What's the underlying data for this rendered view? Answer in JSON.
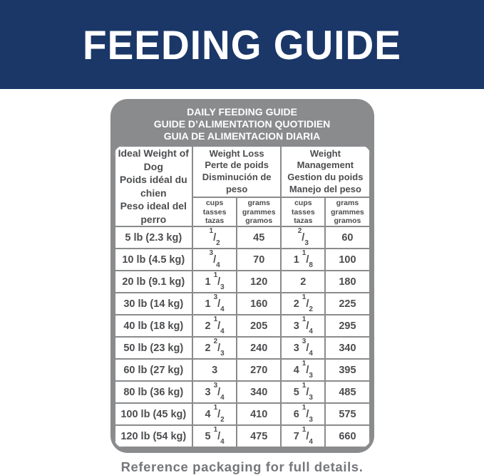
{
  "banner": {
    "title": "FEEDING GUIDE"
  },
  "colors": {
    "banner_bg": "#1b3768",
    "banner_text": "#ffffff",
    "table_gray": "#8a8b8d",
    "cell_text": "#4c4d4f",
    "footer_text": "#76777b",
    "page_bg": "#ffffff"
  },
  "table": {
    "title_lines": [
      "DAILY FEEDING GUIDE",
      "GUIDE D’ALIMENTATION QUOTIDIEN",
      "GUIA DE ALIMENTACION DIARIA"
    ],
    "weight_header_lines": [
      "Ideal Weight of Dog",
      "Poids idéal du chien",
      "Peso ideal del perro"
    ],
    "groups": [
      {
        "lines": [
          "Weight Loss",
          "Perte de poids",
          "Disminución de peso"
        ]
      },
      {
        "lines": [
          "Weight Management",
          "Gestion du poids",
          "Manejo del peso"
        ]
      }
    ],
    "units": {
      "cups": [
        "cups",
        "tasses",
        "tazas"
      ],
      "grams": [
        "grams",
        "grammes",
        "gramos"
      ]
    },
    "rows": [
      {
        "weight": "5 lb (2.3 kg)",
        "wl_cups": "1/2",
        "wl_grams": "45",
        "wm_cups": "2/3",
        "wm_grams": "60"
      },
      {
        "weight": "10 lb (4.5 kg)",
        "wl_cups": "3/4",
        "wl_grams": "70",
        "wm_cups": "1 1/8",
        "wm_grams": "100"
      },
      {
        "weight": "20 lb (9.1 kg)",
        "wl_cups": "1 1/3",
        "wl_grams": "120",
        "wm_cups": "2",
        "wm_grams": "180"
      },
      {
        "weight": "30 lb (14 kg)",
        "wl_cups": "1 3/4",
        "wl_grams": "160",
        "wm_cups": "2 1/2",
        "wm_grams": "225"
      },
      {
        "weight": "40 lb (18 kg)",
        "wl_cups": "2 1/4",
        "wl_grams": "205",
        "wm_cups": "3 1/4",
        "wm_grams": "295"
      },
      {
        "weight": "50 lb (23 kg)",
        "wl_cups": "2 2/3",
        "wl_grams": "240",
        "wm_cups": "3 3/4",
        "wm_grams": "340"
      },
      {
        "weight": "60 lb (27 kg)",
        "wl_cups": "3",
        "wl_grams": "270",
        "wm_cups": "4 1/3",
        "wm_grams": "395"
      },
      {
        "weight": "80 lb (36 kg)",
        "wl_cups": "3 3/4",
        "wl_grams": "340",
        "wm_cups": "5 1/3",
        "wm_grams": "485"
      },
      {
        "weight": "100 lb (45 kg)",
        "wl_cups": "4 1/2",
        "wl_grams": "410",
        "wm_cups": "6 1/3",
        "wm_grams": "575"
      },
      {
        "weight": "120 lb (54 kg)",
        "wl_cups": "5 1/4",
        "wl_grams": "475",
        "wm_cups": "7 1/4",
        "wm_grams": "660"
      }
    ]
  },
  "footer": {
    "note": "Reference packaging for full details."
  }
}
